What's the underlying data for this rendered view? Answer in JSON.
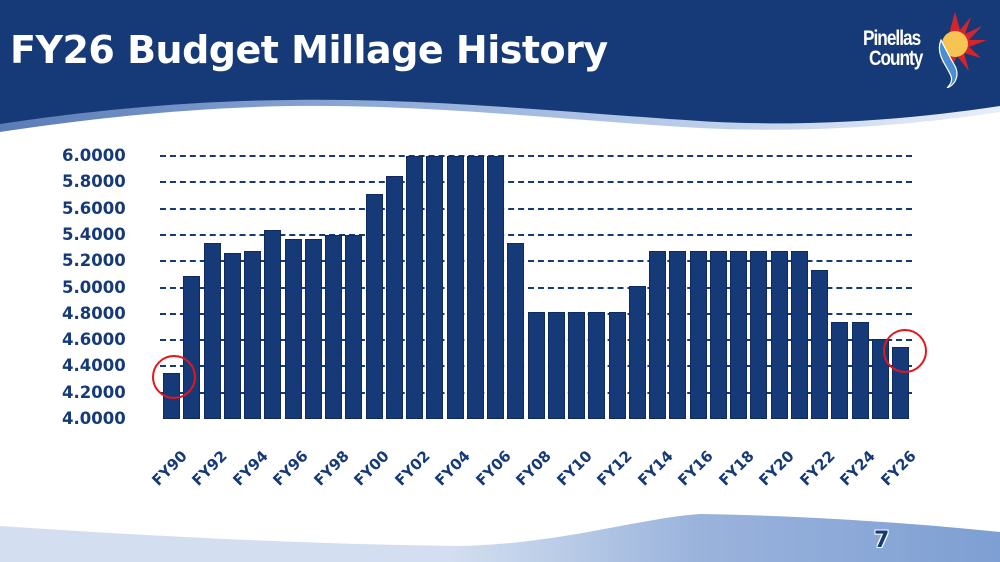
{
  "slide": {
    "title": "FY26 Budget Millage History",
    "page_number": "7",
    "logo": {
      "line1": "Pinellas",
      "line2": "County"
    },
    "colors": {
      "header_bg": "#163a78",
      "bar": "#163a78",
      "axis_text": "#163a78",
      "highlight_circle": "#e8141c",
      "footer_band": "#8eaad8"
    }
  },
  "chart_data": {
    "type": "bar",
    "title": "FY26 Budget Millage History",
    "xlabel": "",
    "ylabel": "",
    "ylim": [
      4.0,
      6.0
    ],
    "yticks": [
      "6.0000",
      "5.8000",
      "5.6000",
      "5.4000",
      "5.2000",
      "5.0000",
      "4.8000",
      "4.6000",
      "4.4000",
      "4.2000",
      "4.0000"
    ],
    "grid": true,
    "legend": null,
    "categories": [
      "FY90",
      "FY91",
      "FY92",
      "FY93",
      "FY94",
      "FY95",
      "FY96",
      "FY97",
      "FY98",
      "FY99",
      "FY00",
      "FY01",
      "FY02",
      "FY03",
      "FY04",
      "FY05",
      "FY06",
      "FY07",
      "FY08",
      "FY09",
      "FY10",
      "FY11",
      "FY12",
      "FY13",
      "FY14",
      "FY15",
      "FY16",
      "FY17",
      "FY18",
      "FY19",
      "FY20",
      "FY21",
      "FY22",
      "FY23",
      "FY24",
      "FY25",
      "FY26"
    ],
    "xtick_labels": [
      "FY90",
      "FY92",
      "FY94",
      "FY96",
      "FY98",
      "FY00",
      "FY02",
      "FY04",
      "FY06",
      "FY08",
      "FY10",
      "FY12",
      "FY14",
      "FY16",
      "FY18",
      "FY20",
      "FY22",
      "FY24",
      "FY26"
    ],
    "values": [
      4.35,
      5.09,
      5.34,
      5.265,
      5.28,
      5.44,
      5.37,
      5.37,
      5.4,
      5.4,
      5.71,
      5.85,
      6.0,
      6.0,
      6.0,
      6.0,
      6.0,
      5.34,
      4.8108,
      4.8108,
      4.8108,
      4.8108,
      4.8108,
      5.0105,
      5.2755,
      5.2755,
      5.2755,
      5.2755,
      5.2755,
      5.2755,
      5.2755,
      5.2755,
      5.1302,
      4.7398,
      4.7398,
      4.605,
      4.55
    ],
    "annotations": [
      {
        "type": "circle",
        "target": "FY90",
        "color": "#e8141c"
      },
      {
        "type": "circle",
        "target": "FY26",
        "color": "#e8141c"
      }
    ]
  }
}
